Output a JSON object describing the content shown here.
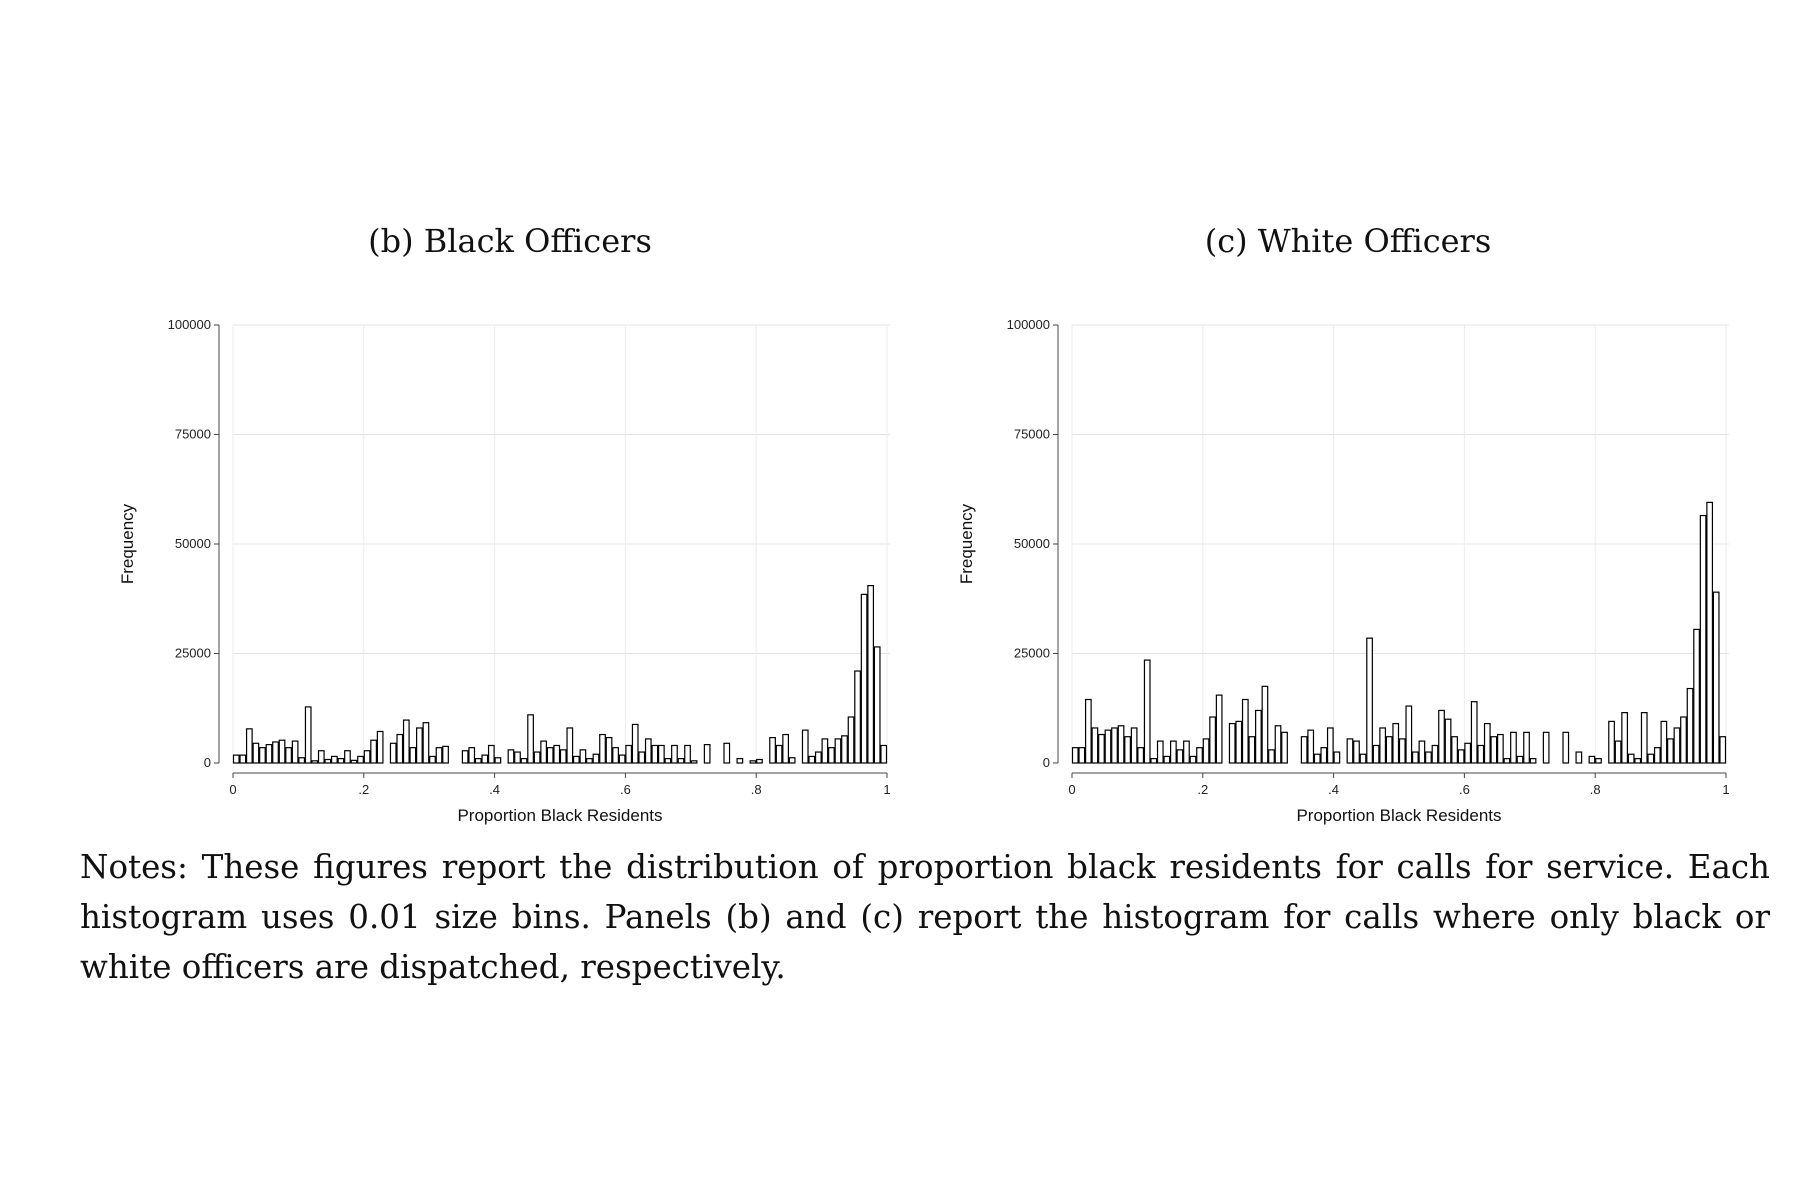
{
  "chart_data": [
    {
      "type": "bar",
      "title": "(b) Black Officers",
      "xlabel": "Proportion Black Residents",
      "ylabel": "Frequency",
      "xlim": [
        0,
        1
      ],
      "ylim": [
        0,
        100000
      ],
      "bin_width": 0.01,
      "x_ticks": [
        0,
        0.2,
        0.4,
        0.6,
        0.8,
        1
      ],
      "x_tick_labels": [
        "0",
        ".2",
        ".4",
        ".6",
        ".8",
        "1"
      ],
      "y_ticks": [
        0,
        25000,
        50000,
        75000,
        100000
      ],
      "y_tick_labels": [
        "0",
        "25000",
        "50000",
        "75000",
        "100000"
      ],
      "grid": true,
      "bar_fill": "#ffffff",
      "bar_stroke": "#000000",
      "values": [
        1800,
        1800,
        7800,
        4500,
        3500,
        4200,
        4800,
        5200,
        3500,
        5000,
        1200,
        12800,
        500,
        2800,
        800,
        1500,
        1000,
        2800,
        600,
        1500,
        2800,
        5200,
        7200,
        0,
        4500,
        6500,
        9800,
        3500,
        8000,
        9200,
        1500,
        3500,
        3800,
        0,
        0,
        2800,
        3500,
        1000,
        1800,
        4000,
        1200,
        0,
        3000,
        2500,
        1000,
        11000,
        2500,
        5000,
        3500,
        4000,
        3000,
        8000,
        1500,
        3000,
        1000,
        2000,
        6500,
        5800,
        3500,
        1800,
        4000,
        8800,
        2500,
        5500,
        4000,
        4000,
        1000,
        4000,
        1000,
        4000,
        500,
        0,
        4200,
        0,
        0,
        4500,
        0,
        1000,
        0,
        500,
        800,
        0,
        5800,
        4000,
        6500,
        1200,
        0,
        7500,
        1500,
        2500,
        5500,
        3500,
        5500,
        6200,
        10500,
        21000,
        38500,
        40500,
        26500,
        4000
      ]
    },
    {
      "type": "bar",
      "title": "(c) White Officers",
      "xlabel": "Proportion Black Residents",
      "ylabel": "Frequency",
      "xlim": [
        0,
        1
      ],
      "ylim": [
        0,
        100000
      ],
      "bin_width": 0.01,
      "x_ticks": [
        0,
        0.2,
        0.4,
        0.6,
        0.8,
        1
      ],
      "x_tick_labels": [
        "0",
        ".2",
        ".4",
        ".6",
        ".8",
        "1"
      ],
      "y_ticks": [
        0,
        25000,
        50000,
        75000,
        100000
      ],
      "y_tick_labels": [
        "0",
        "25000",
        "50000",
        "75000",
        "100000"
      ],
      "grid": true,
      "bar_fill": "#ffffff",
      "bar_stroke": "#000000",
      "values": [
        3500,
        3500,
        14500,
        8000,
        6500,
        7500,
        8000,
        8500,
        6000,
        8000,
        3500,
        23500,
        1000,
        5000,
        1500,
        5000,
        3000,
        5000,
        1500,
        3500,
        5500,
        10500,
        15500,
        0,
        9000,
        9500,
        14500,
        6000,
        12000,
        17500,
        3000,
        8500,
        7000,
        0,
        0,
        6000,
        7500,
        2000,
        3500,
        8000,
        2500,
        0,
        5500,
        5000,
        2000,
        28500,
        4000,
        8000,
        6000,
        9000,
        5500,
        13000,
        2500,
        5000,
        2500,
        4000,
        12000,
        10000,
        6000,
        3000,
        4500,
        14000,
        4000,
        9000,
        6000,
        6500,
        1000,
        7000,
        1500,
        7000,
        1000,
        0,
        7000,
        0,
        0,
        7000,
        0,
        2500,
        0,
        1500,
        1000,
        0,
        9500,
        5000,
        11500,
        2000,
        1000,
        11500,
        2000,
        3500,
        9500,
        5500,
        8000,
        10500,
        17000,
        30500,
        56500,
        59500,
        39000,
        6000
      ]
    }
  ],
  "notes": "Notes: These figures report the distribution of proportion black residents for calls for service. Each histogram uses 0.01 size bins. Panels (b) and (c) report the histogram for calls where only black or white officers are dispatched, respectively."
}
